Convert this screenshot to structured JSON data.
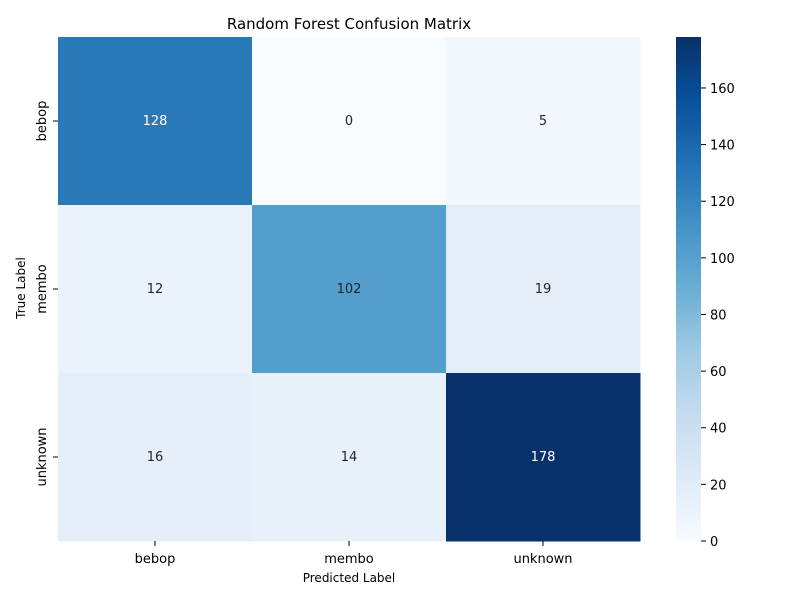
{
  "chart_data": {
    "type": "heatmap",
    "title": "Random Forest Confusion Matrix",
    "xlabel": "Predicted Label",
    "ylabel": "True Label",
    "x_categories": [
      "bebop",
      "membo",
      "unknown"
    ],
    "y_categories": [
      "bebop",
      "membo",
      "unknown"
    ],
    "values": [
      [
        128,
        0,
        5
      ],
      [
        12,
        102,
        19
      ],
      [
        16,
        14,
        178
      ]
    ],
    "colormap": "Blues",
    "colorbar": {
      "range": [
        0,
        178
      ],
      "ticks": [
        0,
        20,
        40,
        60,
        80,
        100,
        120,
        140,
        160
      ]
    },
    "annotations": true
  }
}
